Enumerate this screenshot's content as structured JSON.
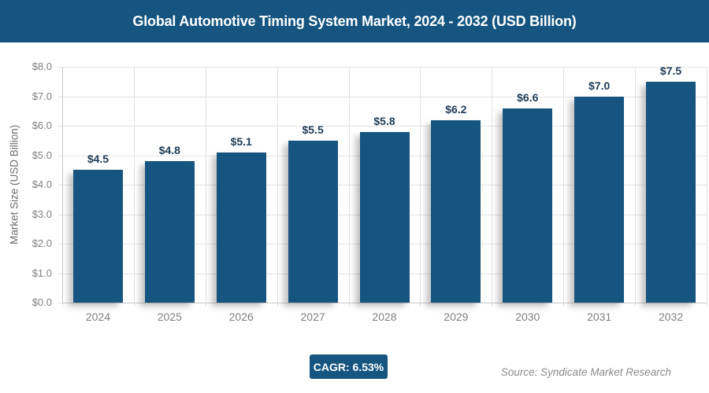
{
  "header": {
    "title": "Global Automotive Timing System Market, 2024 - 2032 (USD Billion)"
  },
  "chart_data": {
    "type": "bar",
    "title": "Global Automotive Timing System Market, 2024 - 2032 (USD Billion)",
    "categories": [
      "2024",
      "2025",
      "2026",
      "2027",
      "2028",
      "2029",
      "2030",
      "2031",
      "2032"
    ],
    "values": [
      4.5,
      4.8,
      5.1,
      5.5,
      5.8,
      6.2,
      6.6,
      7.0,
      7.5
    ],
    "value_labels": [
      "$4.5",
      "$4.8",
      "$5.1",
      "$5.5",
      "$5.8",
      "$6.2",
      "$6.6",
      "$7.0",
      "$7.5"
    ],
    "xlabel": "",
    "ylabel": "Market Size (USD Billion)",
    "ylim": [
      0,
      8
    ],
    "ytick_step": 1.0,
    "ytick_labels": [
      "$0.0",
      "$1.0",
      "$2.0",
      "$3.0",
      "$4.0",
      "$5.0",
      "$6.0",
      "$7.0",
      "$8.0"
    ],
    "grid": true,
    "legend": "none",
    "bar_color": "#155580",
    "value_label_color": "#1f3b55"
  },
  "footer": {
    "cagr_badge": "CAGR: 6.53%",
    "source": "Source: Syndicate Market Research"
  },
  "colors": {
    "accent_blue": "#155580",
    "header_bg": "#155580",
    "axis_text": "#7f7f7f",
    "gridline": "#e2e2e2",
    "axis_line": "#c8c8c8"
  }
}
